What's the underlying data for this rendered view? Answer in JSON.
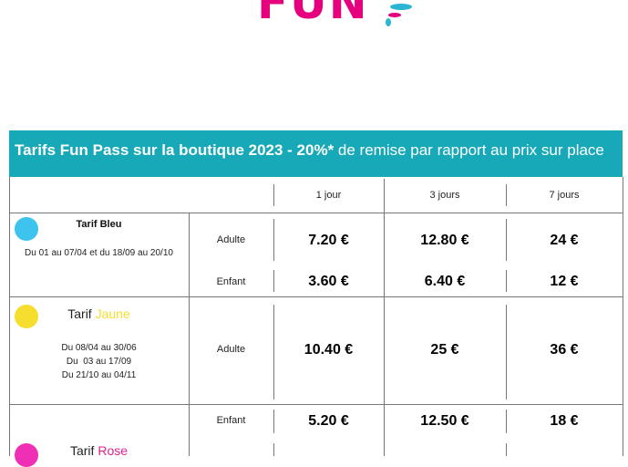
{
  "logo": {
    "text": "FUN",
    "color": "#e6007e"
  },
  "banner": {
    "bold": "Tarifs Fun Pass sur la boutique 2023  - 20%*",
    "light": " de remise par rapport au prix sur place",
    "color": "#17a9b7"
  },
  "columns": [
    "1 jour",
    "3 jours",
    "7 jours"
  ],
  "tariffs": [
    {
      "name": "Tarif Bleu",
      "color": "#3cc3ee",
      "dates": [
        "Du 01 au 07/04 et du 18/09 au 20/10"
      ],
      "rows": [
        {
          "label": "Adulte",
          "prices": [
            "7.20 €",
            "12.80 €",
            "24 €"
          ]
        },
        {
          "label": "Enfant",
          "prices": [
            "3.60 €",
            "6.40 €",
            "12 €"
          ]
        }
      ]
    },
    {
      "name_prefix": "Tarif ",
      "name_color_word": "Jaune",
      "color": "#f5de2e",
      "dates": [
        "Du 08/04 au 30/06",
        "Du  03 au 17/09",
        "Du 21/10 au 04/11"
      ],
      "rows": [
        {
          "label": "Adulte",
          "prices": [
            "10.40 €",
            "25 €",
            "36 €"
          ]
        },
        {
          "label": "Enfant",
          "prices": [
            "5.20 €",
            "12.50 €",
            "18 €"
          ]
        }
      ]
    },
    {
      "name_prefix": "Tarif ",
      "name_color_word": "Rose",
      "color": "#ef2fb4"
    }
  ]
}
